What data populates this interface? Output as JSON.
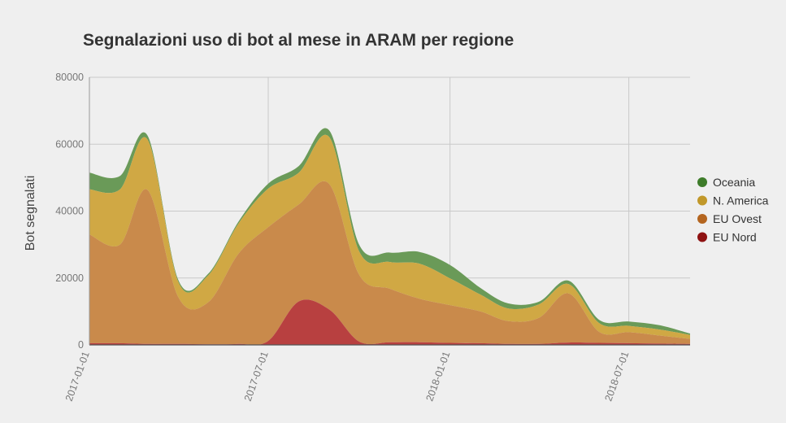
{
  "chart_data": {
    "type": "area",
    "stacked": true,
    "title": "Segnalazioni uso di bot al mese in ARAM per regione",
    "ylabel": "Bot segnalati",
    "xlabel": "",
    "ylim": [
      0,
      80000
    ],
    "y_ticks": [
      "0",
      "20000",
      "40000",
      "60000",
      "80000"
    ],
    "x_ticks": [
      "2017-01-01",
      "2017-07-01",
      "2018-01-01",
      "2018-07-01"
    ],
    "grid": true,
    "legend_position": "right",
    "x": [
      "2017-01-01",
      "2017-02-01",
      "2017-03-01",
      "2017-04-01",
      "2017-05-01",
      "2017-06-01",
      "2017-07-01",
      "2017-08-01",
      "2017-09-01",
      "2017-10-01",
      "2017-11-01",
      "2017-12-01",
      "2018-01-01",
      "2018-02-01",
      "2018-03-01",
      "2018-04-01",
      "2018-05-01",
      "2018-06-01",
      "2018-07-01",
      "2018-08-01",
      "2018-09-01"
    ],
    "series": [
      {
        "name": "EU Nord",
        "color": "#b84040",
        "values": [
          500,
          500,
          300,
          300,
          200,
          300,
          1200,
          13000,
          10500,
          1000,
          800,
          800,
          600,
          500,
          300,
          300,
          700,
          600,
          500,
          400,
          300
        ]
      },
      {
        "name": "EU Ovest",
        "color": "#c98a4b",
        "values": [
          32500,
          29500,
          46000,
          14000,
          12500,
          27000,
          34000,
          29000,
          37500,
          20000,
          16000,
          13000,
          11300,
          9500,
          6800,
          7800,
          14700,
          3300,
          3300,
          2400,
          1500
        ]
      },
      {
        "name": "N. America",
        "color": "#d0a844",
        "values": [
          13500,
          16500,
          15000,
          4500,
          8000,
          9000,
          11500,
          9500,
          14000,
          7000,
          8000,
          10500,
          8000,
          5000,
          3800,
          4000,
          2800,
          2600,
          1900,
          1800,
          1200
        ]
      },
      {
        "name": "Oceania",
        "color": "#6a9a58",
        "values": [
          5000,
          4000,
          1200,
          600,
          500,
          600,
          1500,
          2000,
          2000,
          2000,
          2800,
          3500,
          4000,
          2000,
          1500,
          800,
          1000,
          1000,
          1300,
          1300,
          400
        ]
      }
    ],
    "legend_order": [
      "Oceania",
      "N. America",
      "EU Ovest",
      "EU Nord"
    ],
    "legend_colors": {
      "Oceania": "#3e7c2a",
      "N. America": "#c1982a",
      "EU Ovest": "#b4651f",
      "EU Nord": "#8e1212"
    }
  }
}
